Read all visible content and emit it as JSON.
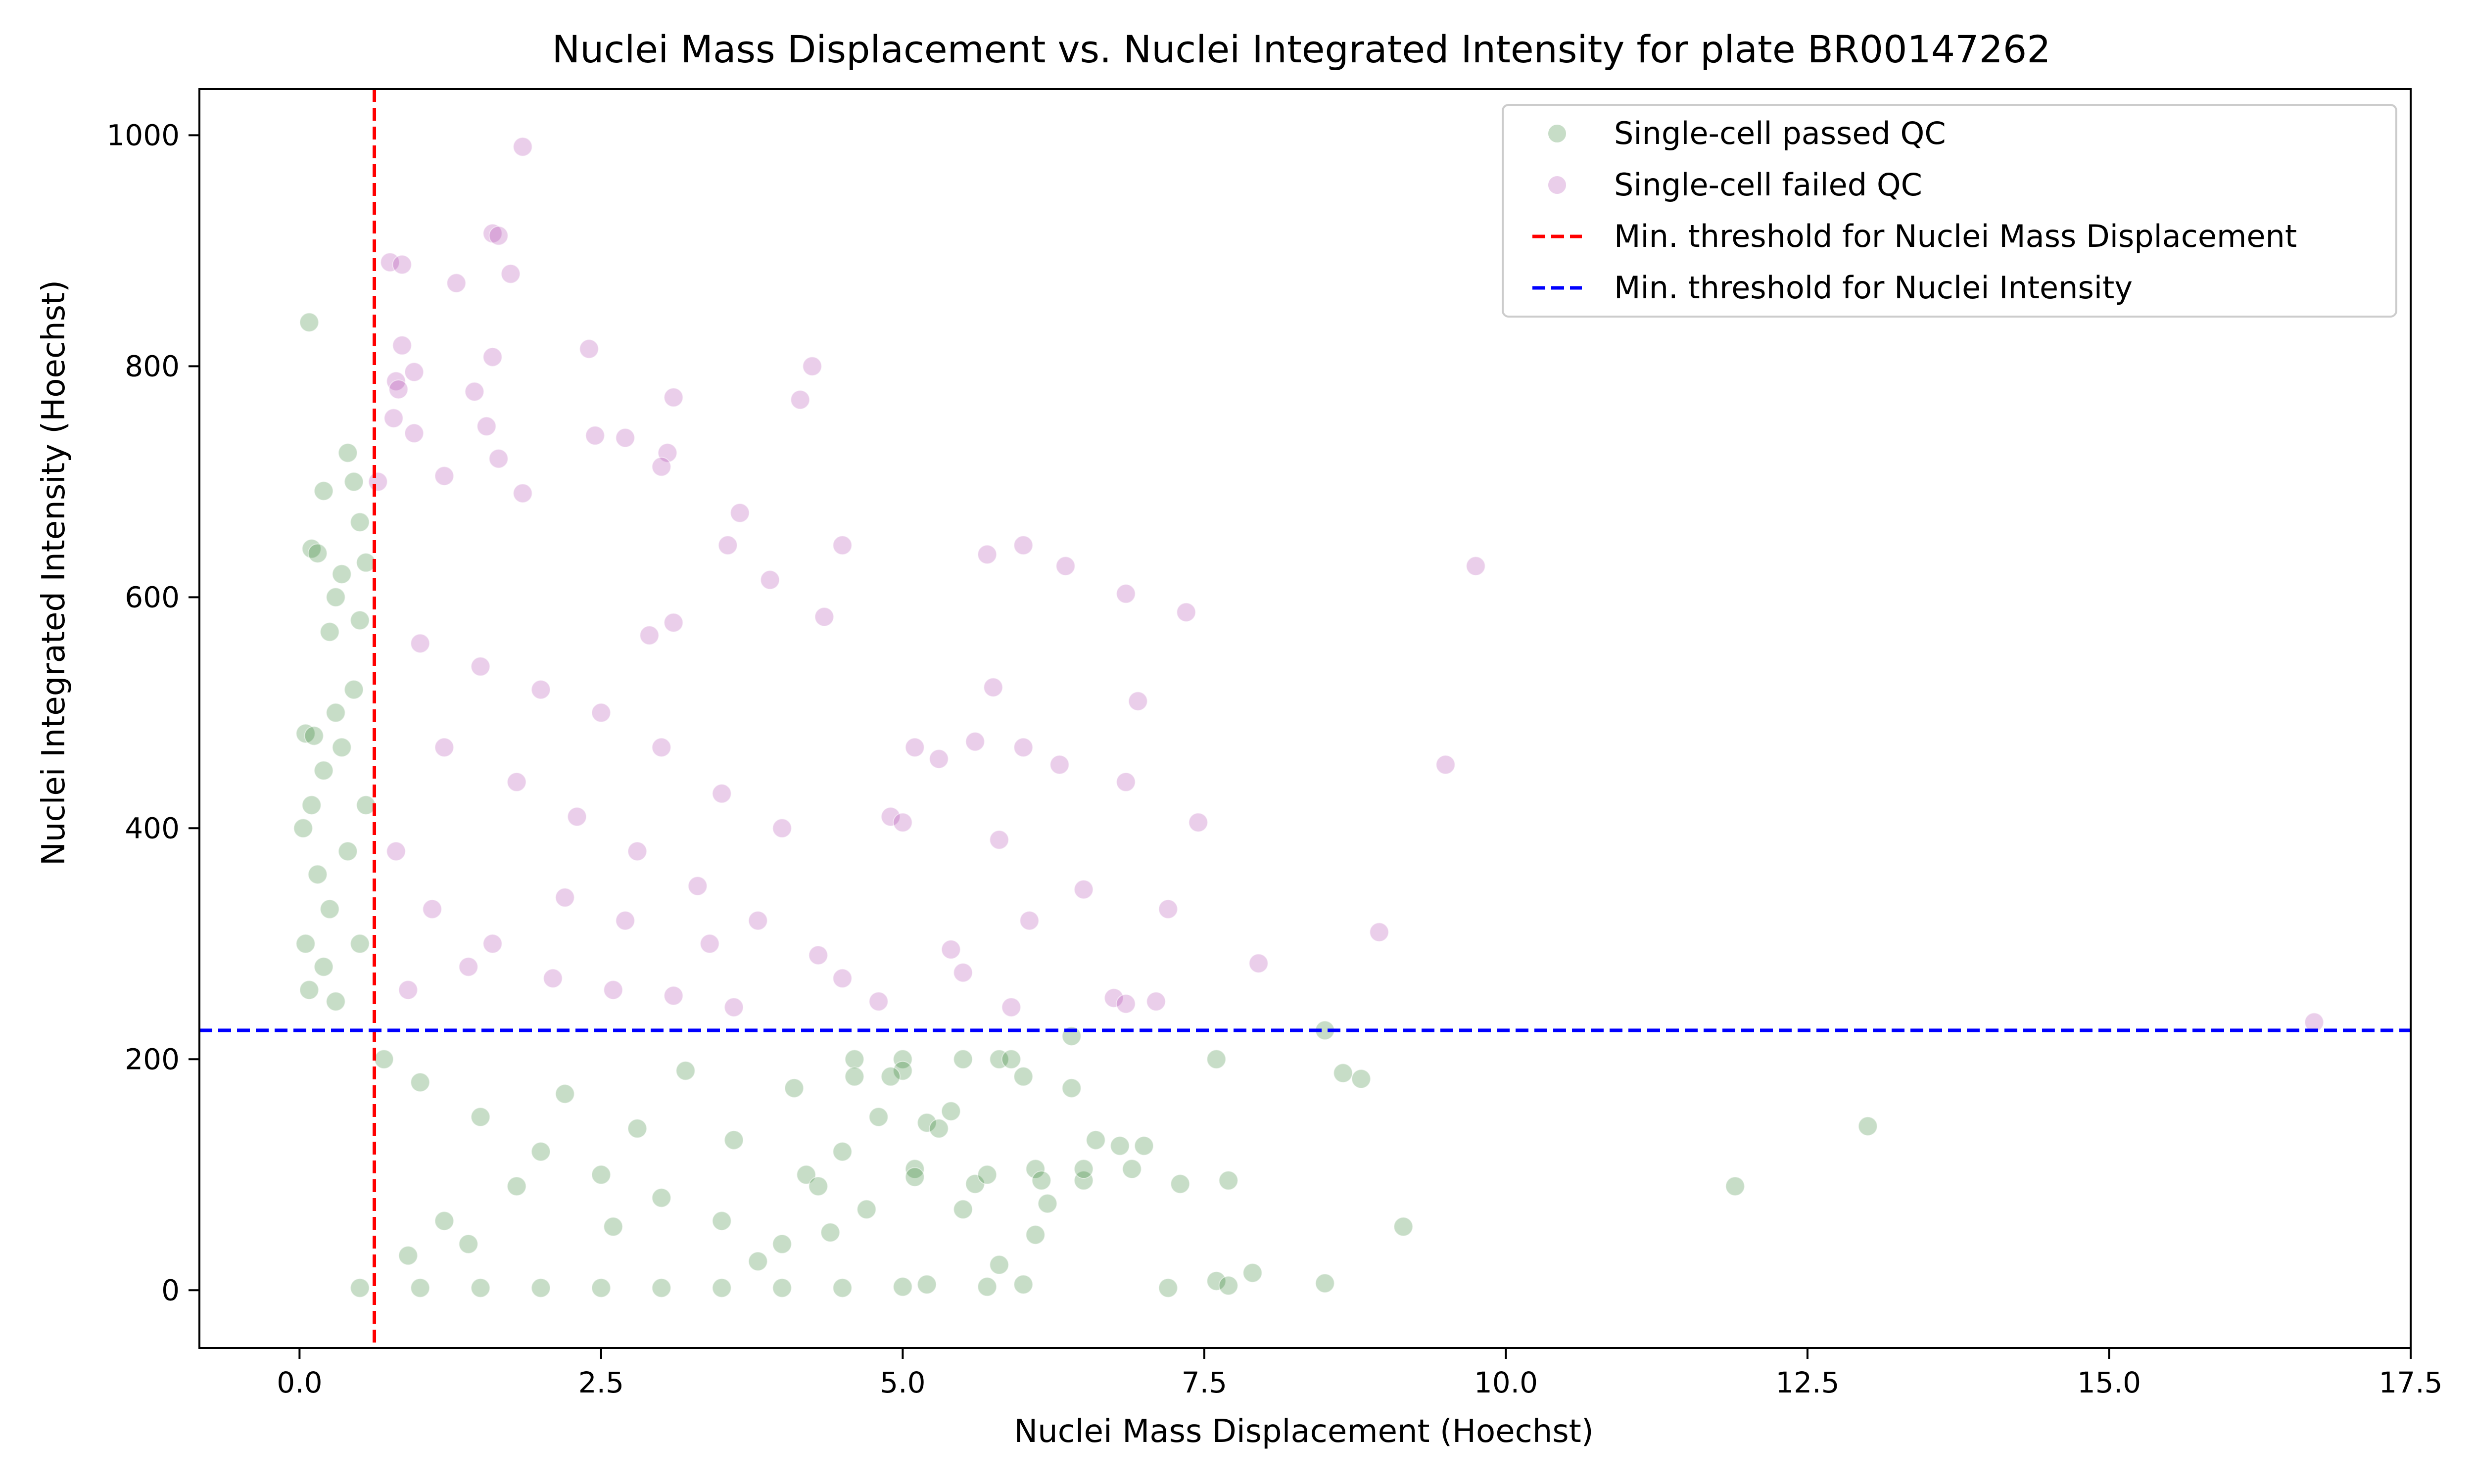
{
  "chart_data": {
    "type": "scatter",
    "title": "Nuclei Mass Displacement vs. Nuclei Integrated Intensity for plate BR00147262",
    "xlabel": "Nuclei Mass Displacement (Hoechst)",
    "ylabel": "Nuclei Integrated Intensity (Hoechst)",
    "xlim": [
      -0.83,
      17.5
    ],
    "ylim": [
      -50,
      1040
    ],
    "x_ticks": [
      0.0,
      2.5,
      5.0,
      7.5,
      10.0,
      12.5,
      15.0,
      17.5
    ],
    "x_tick_labels": [
      "0.0",
      "2.5",
      "5.0",
      "7.5",
      "10.0",
      "12.5",
      "15.0",
      "17.5"
    ],
    "y_ticks": [
      0,
      200,
      400,
      600,
      800,
      1000
    ],
    "y_tick_labels": [
      "0",
      "200",
      "400",
      "600",
      "800",
      "1000"
    ],
    "grid": false,
    "legend_position": "top-right",
    "legend": [
      {
        "label": "Single-cell passed QC",
        "kind": "marker",
        "color": "#006400"
      },
      {
        "label": "Single-cell failed QC",
        "kind": "marker",
        "color": "#a020a0"
      },
      {
        "label": "Min. threshold for Nuclei Mass Displacement",
        "kind": "dashed-line",
        "color": "#ff0000"
      },
      {
        "label": "Min. threshold for Nuclei Intensity",
        "kind": "dashed-line",
        "color": "#0000ff"
      }
    ],
    "thresholds": {
      "min_mass_displacement": 0.62,
      "min_intensity": 225
    },
    "series": [
      {
        "name": "Single-cell passed QC",
        "color": "#006400",
        "opacity": 0.22,
        "points": [
          [
            0.08,
            838
          ],
          [
            0.2,
            692
          ],
          [
            0.1,
            642
          ],
          [
            0.15,
            638
          ],
          [
            0.3,
            600
          ],
          [
            0.4,
            725
          ],
          [
            0.45,
            700
          ],
          [
            0.5,
            665
          ],
          [
            0.35,
            620
          ],
          [
            0.25,
            570
          ],
          [
            0.05,
            482
          ],
          [
            0.12,
            480
          ],
          [
            0.55,
            630
          ],
          [
            0.5,
            580
          ],
          [
            0.03,
            400
          ],
          [
            0.1,
            420
          ],
          [
            0.2,
            450
          ],
          [
            0.3,
            500
          ],
          [
            0.45,
            520
          ],
          [
            0.35,
            470
          ],
          [
            0.15,
            360
          ],
          [
            0.25,
            330
          ],
          [
            0.05,
            300
          ],
          [
            0.4,
            380
          ],
          [
            0.55,
            420
          ],
          [
            0.08,
            260
          ],
          [
            0.3,
            250
          ],
          [
            0.5,
            300
          ],
          [
            0.2,
            280
          ],
          [
            0.7,
            200
          ],
          [
            1.0,
            180
          ],
          [
            1.5,
            150
          ],
          [
            2.0,
            120
          ],
          [
            2.5,
            100
          ],
          [
            3.0,
            80
          ],
          [
            3.5,
            60
          ],
          [
            4.0,
            40
          ],
          [
            1.2,
            60
          ],
          [
            1.8,
            90
          ],
          [
            2.2,
            170
          ],
          [
            2.8,
            140
          ],
          [
            3.2,
            190
          ],
          [
            3.6,
            130
          ],
          [
            4.2,
            100
          ],
          [
            0.9,
            30
          ],
          [
            1.4,
            40
          ],
          [
            2.6,
            55
          ],
          [
            3.8,
            25
          ],
          [
            4.6,
            200
          ],
          [
            4.8,
            150
          ],
          [
            4.5,
            120
          ],
          [
            4.3,
            90
          ],
          [
            4.7,
            70
          ],
          [
            4.4,
            50
          ],
          [
            4.1,
            175
          ],
          [
            4.6,
            185
          ],
          [
            5.0,
            200
          ],
          [
            5.0,
            190
          ],
          [
            5.1,
            105
          ],
          [
            5.1,
            98
          ],
          [
            5.2,
            145
          ],
          [
            5.3,
            140
          ],
          [
            5.4,
            155
          ],
          [
            5.5,
            70
          ],
          [
            5.6,
            92
          ],
          [
            5.7,
            100
          ],
          [
            5.8,
            200
          ],
          [
            5.9,
            200
          ],
          [
            6.0,
            185
          ],
          [
            6.1,
            105
          ],
          [
            6.15,
            95
          ],
          [
            6.2,
            75
          ],
          [
            6.4,
            175
          ],
          [
            6.4,
            220
          ],
          [
            6.5,
            95
          ],
          [
            6.5,
            105
          ],
          [
            6.6,
            130
          ],
          [
            6.8,
            125
          ],
          [
            6.9,
            105
          ],
          [
            7.0,
            125
          ],
          [
            7.3,
            92
          ],
          [
            7.6,
            200
          ],
          [
            7.7,
            95
          ],
          [
            7.9,
            15
          ],
          [
            5.5,
            200
          ],
          [
            5.8,
            22
          ],
          [
            6.1,
            48
          ],
          [
            4.9,
            185
          ],
          [
            0.5,
            2
          ],
          [
            1.0,
            2
          ],
          [
            1.5,
            2
          ],
          [
            2.0,
            2
          ],
          [
            2.5,
            2
          ],
          [
            3.0,
            2
          ],
          [
            3.5,
            2
          ],
          [
            4.0,
            2
          ],
          [
            4.5,
            2
          ],
          [
            5.0,
            3
          ],
          [
            5.2,
            5
          ],
          [
            5.7,
            3
          ],
          [
            6.0,
            5
          ],
          [
            7.2,
            2
          ],
          [
            7.6,
            8
          ],
          [
            7.7,
            4
          ],
          [
            8.5,
            6
          ],
          [
            8.5,
            225
          ],
          [
            8.65,
            188
          ],
          [
            8.8,
            183
          ],
          [
            9.15,
            55
          ],
          [
            11.9,
            90
          ],
          [
            13.0,
            142
          ]
        ]
      },
      {
        "name": "Single-cell failed QC",
        "color": "#a020a0",
        "opacity": 0.22,
        "points": [
          [
            1.85,
            990
          ],
          [
            1.6,
            915
          ],
          [
            1.65,
            913
          ],
          [
            0.75,
            890
          ],
          [
            0.85,
            888
          ],
          [
            1.3,
            872
          ],
          [
            1.75,
            880
          ],
          [
            0.85,
            818
          ],
          [
            2.4,
            815
          ],
          [
            1.6,
            808
          ],
          [
            4.25,
            800
          ],
          [
            0.95,
            795
          ],
          [
            0.8,
            787
          ],
          [
            0.82,
            780
          ],
          [
            1.45,
            778
          ],
          [
            4.15,
            771
          ],
          [
            3.1,
            773
          ],
          [
            0.78,
            755
          ],
          [
            1.55,
            748
          ],
          [
            0.95,
            742
          ],
          [
            2.45,
            740
          ],
          [
            2.7,
            738
          ],
          [
            3.05,
            725
          ],
          [
            3.0,
            713
          ],
          [
            1.2,
            705
          ],
          [
            1.65,
            720
          ],
          [
            1.85,
            690
          ],
          [
            0.65,
            700
          ],
          [
            3.65,
            673
          ],
          [
            5.7,
            637
          ],
          [
            6.0,
            645
          ],
          [
            6.35,
            627
          ],
          [
            6.85,
            603
          ],
          [
            7.35,
            587
          ],
          [
            9.75,
            627
          ],
          [
            3.55,
            645
          ],
          [
            3.9,
            615
          ],
          [
            4.5,
            645
          ],
          [
            4.35,
            583
          ],
          [
            3.1,
            578
          ],
          [
            2.9,
            567
          ],
          [
            1.0,
            560
          ],
          [
            1.5,
            540
          ],
          [
            2.0,
            520
          ],
          [
            2.5,
            500
          ],
          [
            3.0,
            470
          ],
          [
            3.5,
            430
          ],
          [
            4.0,
            400
          ],
          [
            1.2,
            470
          ],
          [
            1.8,
            440
          ],
          [
            2.3,
            410
          ],
          [
            2.8,
            380
          ],
          [
            3.3,
            350
          ],
          [
            3.8,
            320
          ],
          [
            4.3,
            290
          ],
          [
            0.8,
            380
          ],
          [
            1.1,
            330
          ],
          [
            1.6,
            300
          ],
          [
            2.1,
            270
          ],
          [
            2.6,
            260
          ],
          [
            3.1,
            255
          ],
          [
            3.6,
            245
          ],
          [
            0.9,
            260
          ],
          [
            1.4,
            280
          ],
          [
            2.2,
            340
          ],
          [
            2.7,
            320
          ],
          [
            3.4,
            300
          ],
          [
            4.5,
            270
          ],
          [
            4.8,
            250
          ],
          [
            4.9,
            410
          ],
          [
            5.0,
            405
          ],
          [
            5.1,
            470
          ],
          [
            5.3,
            460
          ],
          [
            5.4,
            295
          ],
          [
            5.5,
            275
          ],
          [
            5.6,
            475
          ],
          [
            5.75,
            522
          ],
          [
            5.8,
            390
          ],
          [
            5.9,
            245
          ],
          [
            6.0,
            470
          ],
          [
            6.05,
            320
          ],
          [
            6.3,
            455
          ],
          [
            6.5,
            347
          ],
          [
            6.75,
            253
          ],
          [
            6.85,
            440
          ],
          [
            6.85,
            248
          ],
          [
            6.95,
            510
          ],
          [
            7.1,
            250
          ],
          [
            7.2,
            330
          ],
          [
            7.45,
            405
          ],
          [
            7.95,
            283
          ],
          [
            8.95,
            310
          ],
          [
            9.5,
            455
          ],
          [
            16.7,
            232
          ]
        ]
      }
    ]
  }
}
